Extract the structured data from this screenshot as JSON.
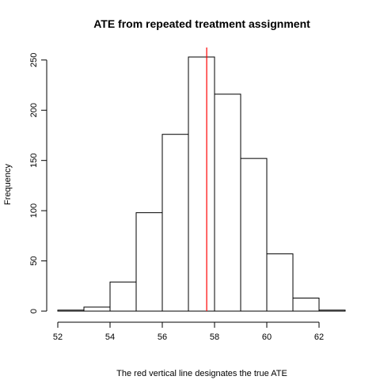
{
  "chart_data": {
    "type": "bar",
    "title": "ATE from repeated treatment assignment",
    "xlabel": "The red vertical line designates the true ATE",
    "ylabel": "Frequency",
    "bin_edges": [
      52,
      53,
      54,
      55,
      56,
      57,
      58,
      59,
      60,
      61,
      62,
      63
    ],
    "values": [
      1,
      4,
      29,
      98,
      176,
      253,
      216,
      152,
      57,
      13,
      1
    ],
    "xlim": [
      52,
      63
    ],
    "ylim": [
      0,
      253
    ],
    "x_ticks": [
      52,
      54,
      56,
      58,
      60,
      62
    ],
    "y_ticks": [
      0,
      50,
      100,
      150,
      200,
      250
    ],
    "reference_line": {
      "x": 57.7,
      "color": "#ff0000"
    },
    "grid": false,
    "legend": "none"
  }
}
